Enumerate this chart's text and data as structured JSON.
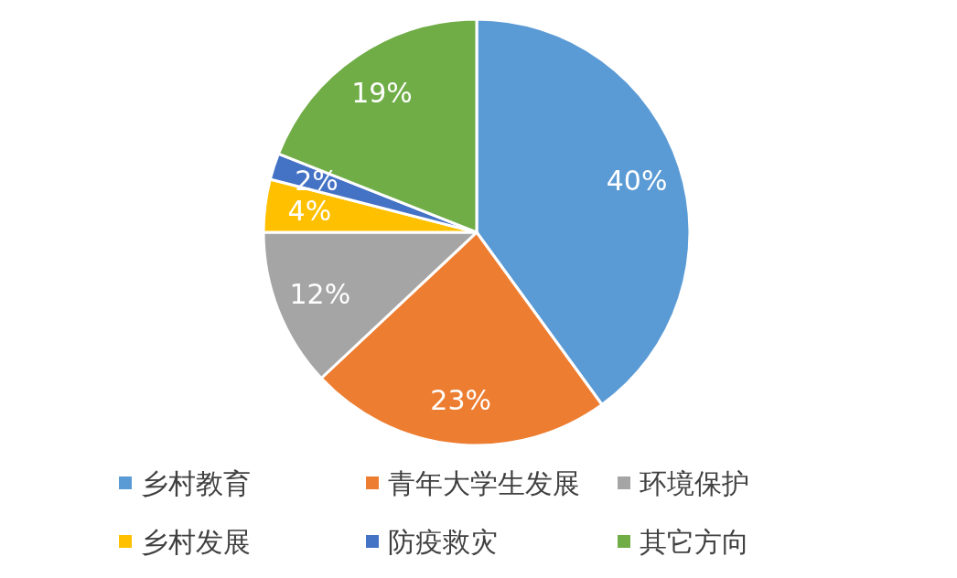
{
  "chart_data": {
    "type": "pie",
    "categories": [
      "乡村教育",
      "青年大学生发展",
      "环境保护",
      "乡村发展",
      "防疫救灾",
      "其它方向"
    ],
    "values": [
      40,
      23,
      12,
      4,
      2,
      19
    ],
    "colors": [
      "#5b9bd5",
      "#ed7d31",
      "#a5a5a5",
      "#ffc000",
      "#4472c4",
      "#70ad47"
    ],
    "value_labels": [
      "40%",
      "23%",
      "12%",
      "4%",
      "2%",
      "19%"
    ],
    "legend": "bottom"
  }
}
